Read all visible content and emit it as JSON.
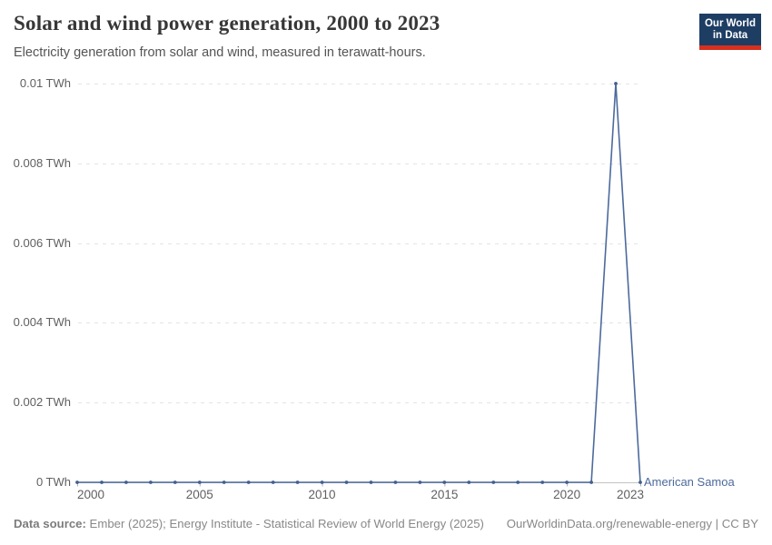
{
  "header": {
    "title": "Solar and wind power generation, 2000 to 2023",
    "subtitle": "Electricity generation from solar and wind, measured in terawatt-hours."
  },
  "logo": {
    "line1": "Our World",
    "line2": "in Data",
    "bg_color": "#1d3d63",
    "stripe_color": "#d7301f"
  },
  "footer": {
    "source_label": "Data source:",
    "source_text": " Ember (2025); Energy Institute - Statistical Review of World Energy (2025)",
    "note": "OurWorldinData.org/renewable-energy | CC BY"
  },
  "colors": {
    "line": "#4c6a9c",
    "point": "#42608f",
    "grid": "#e4e4e4",
    "axis": "#c3c3c3",
    "tick": "#b3b3b3",
    "tick_label": "#606060"
  },
  "chart_data": {
    "type": "line",
    "title": "Solar and wind power generation, 2000 to 2023",
    "xlabel": "",
    "ylabel": "",
    "unit": "TWh",
    "xlim": [
      2000,
      2023
    ],
    "ylim": [
      0,
      0.01
    ],
    "grid": "horizontal-dashed",
    "legend_position": "end-of-line-label",
    "x": [
      2000,
      2001,
      2002,
      2003,
      2004,
      2005,
      2006,
      2007,
      2008,
      2009,
      2010,
      2011,
      2012,
      2013,
      2014,
      2015,
      2016,
      2017,
      2018,
      2019,
      2020,
      2021,
      2022,
      2023
    ],
    "series": [
      {
        "name": "American Samoa",
        "color": "#4c6a9c",
        "values": [
          0,
          0,
          0,
          0,
          0,
          0,
          0,
          0,
          0,
          0,
          0,
          0,
          0,
          0,
          0,
          0,
          0,
          0,
          0,
          0,
          0,
          0,
          0.01,
          0
        ]
      }
    ],
    "y_ticks": [
      {
        "value": 0,
        "label": "0 TWh"
      },
      {
        "value": 0.002,
        "label": "0.002 TWh"
      },
      {
        "value": 0.004,
        "label": "0.004 TWh"
      },
      {
        "value": 0.006,
        "label": "0.006 TWh"
      },
      {
        "value": 0.008,
        "label": "0.008 TWh"
      },
      {
        "value": 0.01,
        "label": "0.01 TWh"
      }
    ],
    "x_ticks": [
      {
        "value": 2000,
        "label": "2000"
      },
      {
        "value": 2005,
        "label": "2005"
      },
      {
        "value": 2010,
        "label": "2010"
      },
      {
        "value": 2015,
        "label": "2015"
      },
      {
        "value": 2020,
        "label": "2020"
      },
      {
        "value": 2023,
        "label": "2023"
      }
    ]
  }
}
